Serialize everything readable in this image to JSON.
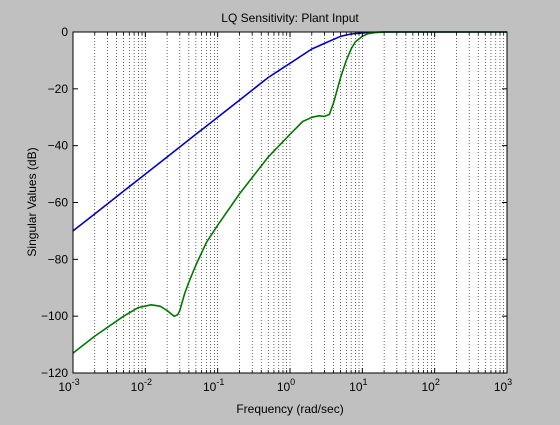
{
  "chart_data": {
    "type": "line",
    "title": "LQ  Sensitivity: Plant Input",
    "xlabel": "Frequency (rad/sec)",
    "ylabel": "Singular Values (dB)",
    "xscale": "log",
    "xlim": [
      0.001,
      1000
    ],
    "ylim": [
      -120,
      0
    ],
    "grid": "on (x-axis major and minor, dotted)",
    "legend": "none",
    "x_ticks": [
      {
        "value": 0.001,
        "base": "10",
        "exp": "-3"
      },
      {
        "value": 0.01,
        "base": "10",
        "exp": "-2"
      },
      {
        "value": 0.1,
        "base": "10",
        "exp": "-1"
      },
      {
        "value": 1,
        "base": "10",
        "exp": "0"
      },
      {
        "value": 10,
        "base": "10",
        "exp": "1"
      },
      {
        "value": 100,
        "base": "10",
        "exp": "2"
      },
      {
        "value": 1000,
        "base": "10",
        "exp": "3"
      }
    ],
    "y_ticks": [
      {
        "value": 0,
        "label": "0"
      },
      {
        "value": -20,
        "label": "−20"
      },
      {
        "value": -40,
        "label": "−40"
      },
      {
        "value": -60,
        "label": "−60"
      },
      {
        "value": -80,
        "label": "−80"
      },
      {
        "value": -100,
        "label": "−100"
      },
      {
        "value": -120,
        "label": "−120"
      }
    ],
    "series": [
      {
        "color": "#0000c8",
        "x": [
          0.001,
          0.002,
          0.005,
          0.01,
          0.02,
          0.05,
          0.1,
          0.2,
          0.5,
          1,
          2,
          3,
          5,
          7,
          10,
          15,
          20,
          30,
          50,
          100,
          1000
        ],
        "y": [
          -70,
          -64,
          -56,
          -50,
          -44,
          -36,
          -30,
          -24,
          -16,
          -11,
          -6,
          -4,
          -1.5,
          -0.7,
          -0.3,
          -0.1,
          0,
          0,
          0,
          0,
          0
        ]
      },
      {
        "color": "#007800",
        "x": [
          0.001,
          0.002,
          0.005,
          0.008,
          0.012,
          0.016,
          0.02,
          0.025,
          0.028,
          0.03,
          0.035,
          0.04,
          0.05,
          0.07,
          0.1,
          0.2,
          0.5,
          1,
          1.5,
          2,
          2.5,
          3,
          3.5,
          4,
          5,
          6,
          7,
          8,
          10,
          12,
          15,
          20,
          25,
          30,
          50,
          100,
          1000
        ],
        "y": [
          -113,
          -107,
          -100,
          -97,
          -96,
          -96.5,
          -98,
          -100,
          -99.5,
          -98,
          -92,
          -88,
          -82,
          -74,
          -68,
          -57,
          -44,
          -36,
          -31.5,
          -30,
          -29.5,
          -29.7,
          -29,
          -25,
          -16,
          -10,
          -6,
          -3.5,
          -1.5,
          -0.6,
          -0.2,
          0,
          0,
          0,
          0,
          0,
          0
        ]
      }
    ]
  }
}
